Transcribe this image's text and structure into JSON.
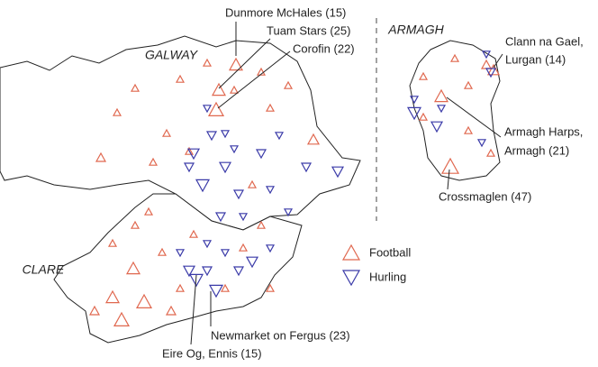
{
  "regions": {
    "galway": "GALWAY",
    "clare": "CLARE",
    "armagh": "ARMAGH"
  },
  "annotations": [
    {
      "lines": [
        "Dunmore McHales (15)"
      ]
    },
    {
      "lines": [
        "Tuam Stars (25)"
      ]
    },
    {
      "lines": [
        "Corofin (22)"
      ]
    },
    {
      "lines": [
        "Clann na Gael,",
        "Lurgan (14)"
      ]
    },
    {
      "lines": [
        "Armagh Harps,",
        "Armagh (21)"
      ]
    },
    {
      "lines": [
        "Crossmaglen (47)"
      ]
    },
    {
      "lines": [
        "Newmarket on Fergus (23)"
      ]
    },
    {
      "lines": [
        "Eire Og, Ennis (15)"
      ]
    }
  ],
  "legend": {
    "football": "Football",
    "hurling": "Hurling"
  }
}
